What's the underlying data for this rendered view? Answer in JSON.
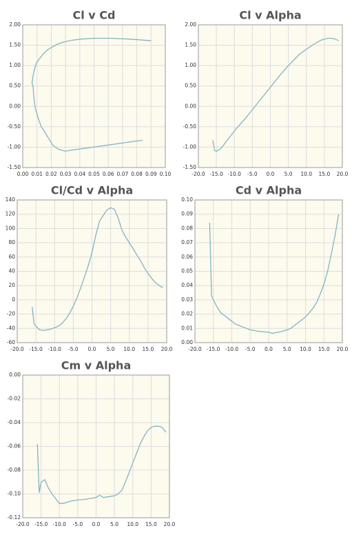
{
  "chart_data": [
    {
      "type": "line",
      "title": "Cl v Cd",
      "color": "#7fb6c2",
      "x": [
        0.084,
        0.033,
        0.03,
        0.025,
        0.021,
        0.019,
        0.017,
        0.015,
        0.013,
        0.012,
        0.011,
        0.01,
        0.009,
        0.0085,
        0.008,
        0.0078,
        0.0075,
        0.0073,
        0.0065,
        0.007,
        0.0075,
        0.0082,
        0.009,
        0.01,
        0.012,
        0.014,
        0.016,
        0.018,
        0.021,
        0.024,
        0.028,
        0.034,
        0.041,
        0.05,
        0.062,
        0.075,
        0.09
      ],
      "values": [
        -0.83,
        -1.08,
        -1.1,
        -1.05,
        -0.95,
        -0.83,
        -0.72,
        -0.6,
        -0.5,
        -0.4,
        -0.3,
        -0.19,
        -0.08,
        0.03,
        0.14,
        0.25,
        0.36,
        0.47,
        0.58,
        0.69,
        0.8,
        0.9,
        1.0,
        1.09,
        1.18,
        1.27,
        1.34,
        1.4,
        1.46,
        1.52,
        1.57,
        1.62,
        1.65,
        1.67,
        1.67,
        1.65,
        1.61
      ],
      "xlim": [
        0,
        0.1
      ],
      "xticks": [
        {
          "value": 0,
          "label": "0.00"
        },
        0.01,
        0.02,
        0.03,
        0.04,
        0.05,
        0.06,
        0.07,
        0.08,
        0.09,
        {
          "value": 0.1,
          "label": "0.10"
        }
      ],
      "ylim": [
        -1.5,
        2
      ],
      "yticks": [
        {
          "value": 2,
          "label": "2.00"
        },
        {
          "value": 1.5,
          "label": "1.50"
        },
        {
          "value": 1,
          "label": "1.00"
        },
        {
          "value": 0.5,
          "label": "0.50"
        },
        {
          "value": 0,
          "label": "0.00"
        },
        {
          "value": -0.5,
          "label": "-0.50"
        },
        {
          "value": -1,
          "label": "-1.00"
        },
        {
          "value": -1.5,
          "label": "-1.50"
        }
      ],
      "grid": true
    },
    {
      "type": "line",
      "title": "Cl v Alpha",
      "color": "#7fb6c2",
      "x": [
        -16,
        -15.5,
        -15,
        -14,
        -13,
        -12,
        -11,
        -10,
        -9,
        -8,
        -7,
        -6,
        -5,
        -4,
        -3,
        -2,
        -1,
        0,
        1,
        2,
        3,
        4,
        5,
        6,
        7,
        8,
        9,
        10,
        11,
        12,
        13,
        14,
        15,
        16,
        17,
        18,
        19
      ],
      "values": [
        -0.83,
        -1.08,
        -1.1,
        -1.05,
        -0.95,
        -0.83,
        -0.72,
        -0.6,
        -0.5,
        -0.4,
        -0.3,
        -0.19,
        -0.08,
        0.03,
        0.14,
        0.25,
        0.36,
        0.47,
        0.58,
        0.69,
        0.8,
        0.9,
        1.0,
        1.09,
        1.18,
        1.27,
        1.34,
        1.4,
        1.46,
        1.52,
        1.57,
        1.62,
        1.65,
        1.67,
        1.67,
        1.65,
        1.61
      ],
      "xlim": [
        -20,
        20
      ],
      "xticks": [
        {
          "value": -20,
          "label": "-20.0"
        },
        {
          "value": -15,
          "label": "-15.0"
        },
        {
          "value": -10,
          "label": "-10.0"
        },
        {
          "value": -5,
          "label": "-5.0"
        },
        {
          "value": 0,
          "label": "0.0"
        },
        {
          "value": 5,
          "label": "5.0"
        },
        {
          "value": 10,
          "label": "10.0"
        },
        {
          "value": 15,
          "label": "15.0"
        },
        {
          "value": 20,
          "label": "20.0"
        }
      ],
      "ylim": [
        -1.5,
        2
      ],
      "yticks": [
        {
          "value": 2,
          "label": "2.00"
        },
        {
          "value": 1.5,
          "label": "1.50"
        },
        {
          "value": 1,
          "label": "1.00"
        },
        {
          "value": 0.5,
          "label": "0.50"
        },
        {
          "value": 0,
          "label": "0.00"
        },
        {
          "value": -0.5,
          "label": "-0.50"
        },
        {
          "value": -1,
          "label": "-1.00"
        },
        {
          "value": -1.5,
          "label": "-1.50"
        }
      ],
      "grid": true
    },
    {
      "type": "line",
      "title": "Cl/Cd v Alpha",
      "color": "#7fb6c2",
      "x": [
        -16,
        -15.5,
        -15,
        -14,
        -13,
        -12,
        -11,
        -10,
        -9,
        -8,
        -7,
        -6,
        -5,
        -4,
        -3,
        -2,
        -1,
        0,
        1,
        2,
        3,
        4,
        5,
        6,
        7,
        8,
        9,
        10,
        11,
        12,
        13,
        14,
        15,
        16,
        17,
        18,
        19
      ],
      "values": [
        -10,
        -33,
        -37,
        -42,
        -43,
        -42,
        -41,
        -39,
        -37,
        -33,
        -27,
        -19,
        -9,
        3,
        17,
        32,
        48,
        66,
        90,
        110,
        118,
        126,
        129,
        127,
        115,
        98,
        88,
        80,
        72,
        63,
        55,
        45,
        37,
        30,
        24,
        20,
        17
      ],
      "xlim": [
        -20,
        20
      ],
      "xticks": [
        {
          "value": -20,
          "label": "-20.0"
        },
        {
          "value": -15,
          "label": "-15.0"
        },
        {
          "value": -10,
          "label": "-10.0"
        },
        {
          "value": -5,
          "label": "-5.0"
        },
        {
          "value": 0,
          "label": "0.0"
        },
        {
          "value": 5,
          "label": "5.0"
        },
        {
          "value": 10,
          "label": "10.0"
        },
        {
          "value": 15,
          "label": "15.0"
        },
        {
          "value": 20,
          "label": "20.0"
        }
      ],
      "ylim": [
        -60,
        140
      ],
      "yticks": [
        140,
        120,
        100,
        80,
        60,
        40,
        20,
        0,
        -20,
        -40,
        -60
      ],
      "grid": true
    },
    {
      "type": "line",
      "title": "Cd v Alpha",
      "color": "#7fb6c2",
      "x": [
        -16,
        -15.5,
        -15,
        -14,
        -13,
        -12,
        -11,
        -10,
        -9,
        -8,
        -7,
        -6,
        -5,
        -4,
        -3,
        -2,
        -1,
        0,
        1,
        2,
        3,
        4,
        5,
        6,
        7,
        8,
        9,
        10,
        11,
        12,
        13,
        14,
        15,
        16,
        17,
        18,
        19
      ],
      "values": [
        0.084,
        0.033,
        0.03,
        0.025,
        0.021,
        0.019,
        0.017,
        0.015,
        0.013,
        0.012,
        0.011,
        0.01,
        0.009,
        0.0085,
        0.008,
        0.0078,
        0.0075,
        0.0073,
        0.0065,
        0.007,
        0.0075,
        0.0082,
        0.009,
        0.01,
        0.012,
        0.014,
        0.016,
        0.018,
        0.021,
        0.024,
        0.028,
        0.034,
        0.041,
        0.05,
        0.062,
        0.075,
        0.09
      ],
      "xlim": [
        -20,
        20
      ],
      "xticks": [
        {
          "value": -20,
          "label": "-20.0"
        },
        {
          "value": -15,
          "label": "-15.0"
        },
        {
          "value": -10,
          "label": "-10.0"
        },
        {
          "value": -5,
          "label": "-5.0"
        },
        {
          "value": 0,
          "label": "0.0"
        },
        {
          "value": 5,
          "label": "5.0"
        },
        {
          "value": 10,
          "label": "10.0"
        },
        {
          "value": 15,
          "label": "15.0"
        },
        {
          "value": 20,
          "label": "20.0"
        }
      ],
      "ylim": [
        0,
        0.1
      ],
      "yticks": [
        {
          "value": 0.1,
          "label": "0.10"
        },
        0.09,
        0.08,
        0.07,
        0.06,
        0.05,
        0.04,
        0.03,
        0.02,
        0.01,
        {
          "value": 0,
          "label": "0.00"
        }
      ],
      "grid": true
    },
    {
      "type": "line",
      "title": "Cm v Alpha",
      "color": "#7fb6c2",
      "x": [
        -16,
        -15.5,
        -15,
        -14,
        -13,
        -12,
        -11,
        -10,
        -9,
        -8,
        -7,
        -6,
        -5,
        -4,
        -3,
        -2,
        -1,
        0,
        1,
        2,
        3,
        4,
        5,
        6,
        7,
        8,
        9,
        10,
        11,
        12,
        13,
        14,
        15,
        16,
        17,
        18,
        19
      ],
      "values": [
        -0.058,
        -0.099,
        -0.09,
        -0.088,
        -0.095,
        -0.1,
        -0.104,
        -0.108,
        -0.108,
        -0.107,
        -0.106,
        -0.1055,
        -0.105,
        -0.1048,
        -0.1045,
        -0.104,
        -0.1035,
        -0.103,
        -0.101,
        -0.103,
        -0.1025,
        -0.102,
        -0.1015,
        -0.1,
        -0.097,
        -0.09,
        -0.082,
        -0.074,
        -0.066,
        -0.058,
        -0.052,
        -0.047,
        -0.044,
        -0.043,
        -0.043,
        -0.044,
        -0.048
      ],
      "xlim": [
        -20,
        20
      ],
      "xticks": [
        {
          "value": -20,
          "label": "-20.0"
        },
        {
          "value": -15,
          "label": "-15.0"
        },
        {
          "value": -10,
          "label": "-10.0"
        },
        {
          "value": -5,
          "label": "-5.0"
        },
        {
          "value": 0,
          "label": "0.0"
        },
        {
          "value": 5,
          "label": "5.0"
        },
        {
          "value": 10,
          "label": "10.0"
        },
        {
          "value": 15,
          "label": "15.0"
        },
        {
          "value": 20,
          "label": "20.0"
        }
      ],
      "ylim": [
        -0.12,
        0
      ],
      "yticks": [
        {
          "value": 0,
          "label": "0.00"
        },
        -0.02,
        -0.04,
        -0.06,
        -0.08,
        {
          "value": -0.1,
          "label": "-0.10"
        },
        -0.12
      ],
      "grid": true
    }
  ]
}
